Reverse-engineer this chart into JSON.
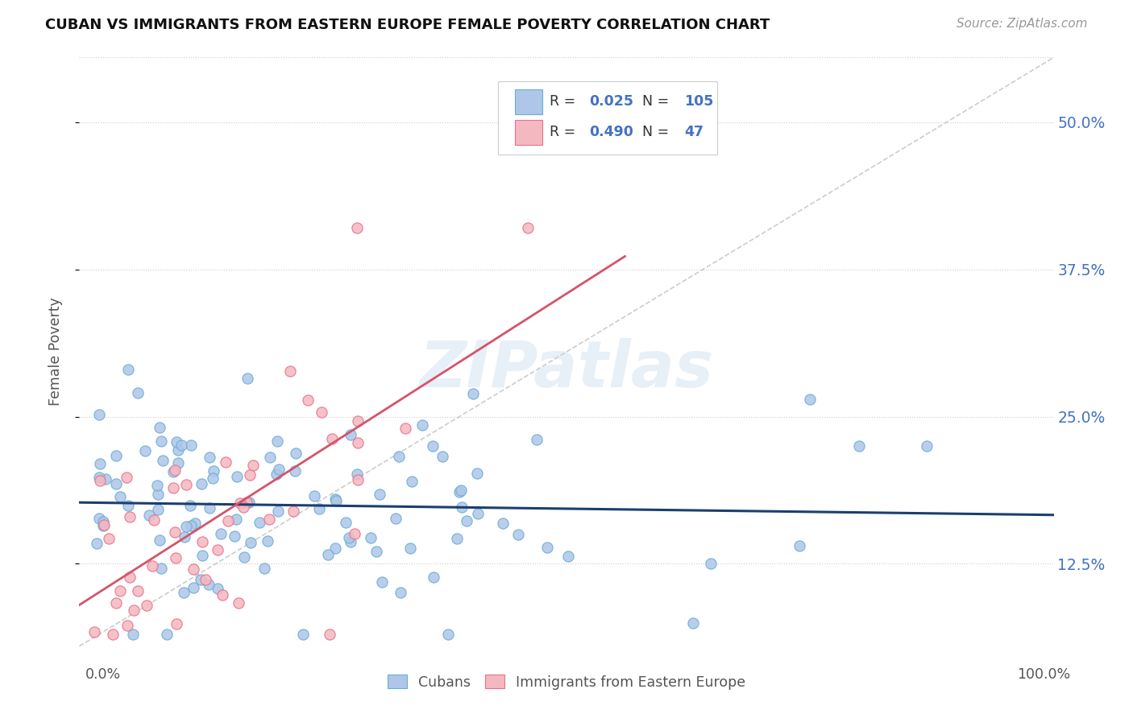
{
  "title": "CUBAN VS IMMIGRANTS FROM EASTERN EUROPE FEMALE POVERTY CORRELATION CHART",
  "source": "Source: ZipAtlas.com",
  "ylabel": "Female Poverty",
  "ytick_labels": [
    "12.5%",
    "25.0%",
    "37.5%",
    "50.0%"
  ],
  "ytick_values": [
    0.125,
    0.25,
    0.375,
    0.5
  ],
  "xlim": [
    0.0,
    1.0
  ],
  "ylim": [
    0.055,
    0.555
  ],
  "background_color": "#ffffff",
  "watermark": "ZIPatlas",
  "cuban_color": "#aec6e8",
  "cuban_edge_color": "#6baed6",
  "eastern_color": "#f4b8c1",
  "eastern_edge_color": "#e8718a",
  "trend_cuban_color": "#1a3f6f",
  "trend_eastern_color": "#d4546a",
  "trend_diagonal_color": "#bbbbbb",
  "legend_R1": "0.025",
  "legend_N1": "105",
  "legend_R2": "0.490",
  "legend_N2": "47",
  "text_color": "#4472c4",
  "label_color": "#555555"
}
